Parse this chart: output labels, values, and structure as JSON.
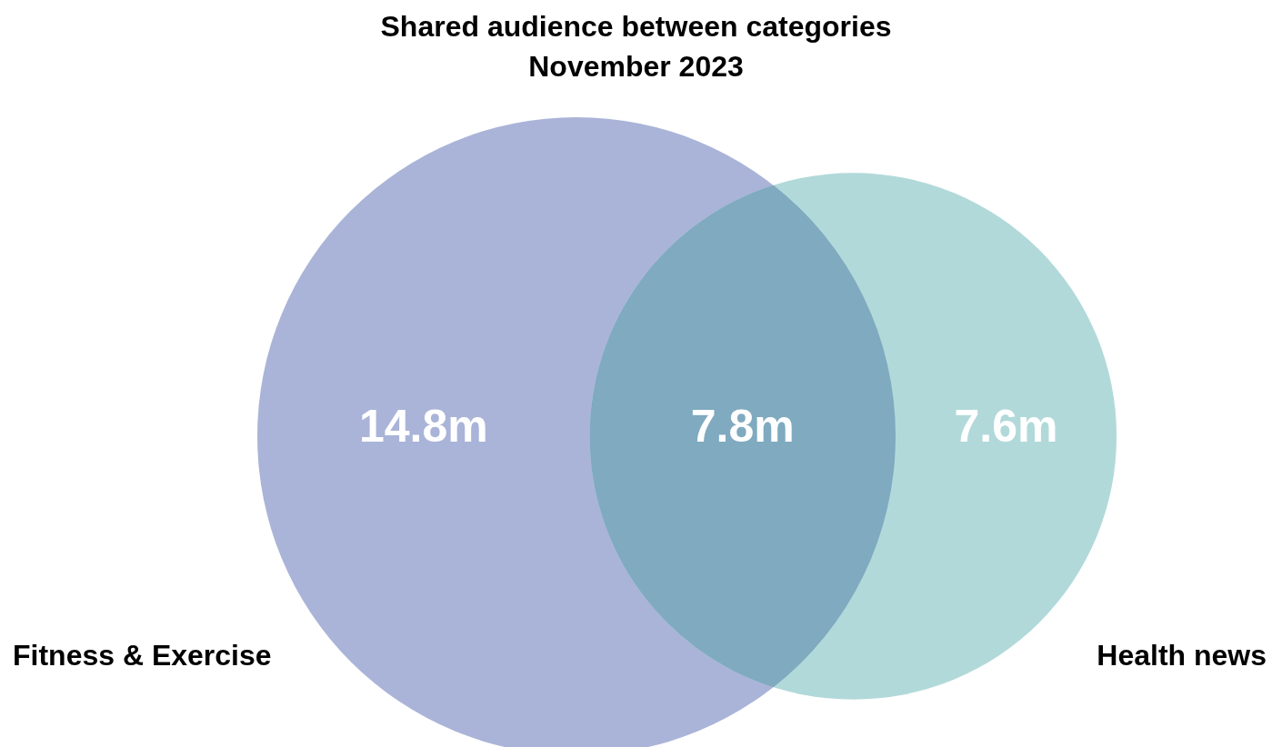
{
  "chart_data": {
    "type": "other",
    "title": "Shared audience between categories",
    "subtitle": "November 2023",
    "categories": [
      "Fitness & Exercise",
      null,
      "Health news"
    ],
    "values": [
      14.8,
      7.8,
      7.6
    ],
    "value_labels": [
      "14.8m",
      "7.8m",
      "7.6m"
    ],
    "colors": [
      "#aab4d8",
      "#7faabf",
      "#b2d9da"
    ]
  }
}
